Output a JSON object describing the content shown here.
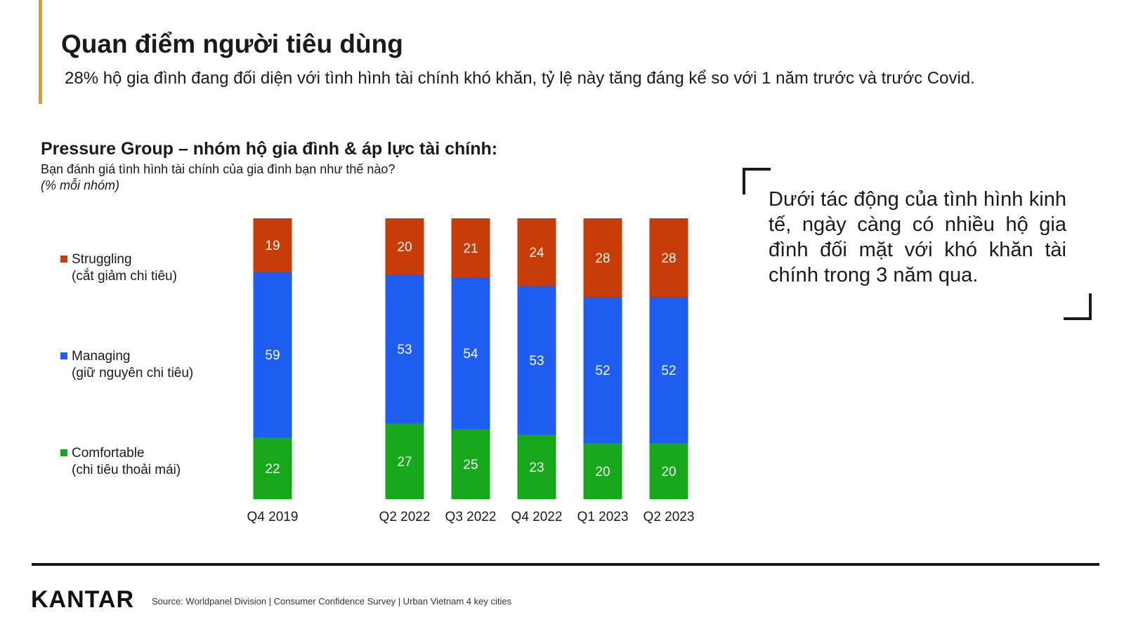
{
  "header": {
    "title": "Quan điểm người tiêu dùng",
    "subtitle": "28% hộ gia đình đang đối diện với tình hình tài chính khó khăn, tỷ lệ này tăng đáng kể so với 1 năm trước và trước Covid."
  },
  "chart_heading": {
    "title": "Pressure Group – nhóm hộ gia đình & áp lực tài chính:",
    "question": "Bạn đánh giá tình hình tài chính của gia đình bạn như thế nào?",
    "unit": "(% mỗi nhóm)"
  },
  "legend": [
    {
      "label": "Struggling",
      "sublabel": "(cắt giảm chi tiêu)",
      "color": "#c83c0a"
    },
    {
      "label": "Managing",
      "sublabel": "(giữ nguyên chi tiêu)",
      "color": "#1f5cf0"
    },
    {
      "label": "Comfortable",
      "sublabel": "(chi tiêu thoải mái)",
      "color": "#16a81a"
    }
  ],
  "chart_data": {
    "type": "bar",
    "stacked": true,
    "percent_stacked": true,
    "categories": [
      "Q4 2019",
      "Q2 2022",
      "Q3 2022",
      "Q4 2022",
      "Q1 2023",
      "Q2 2023"
    ],
    "series": [
      {
        "name": "Comfortable",
        "color": "#16a81a",
        "values": [
          22,
          27,
          25,
          23,
          20,
          20
        ]
      },
      {
        "name": "Managing",
        "color": "#1f5cf0",
        "values": [
          59,
          53,
          54,
          53,
          52,
          52
        ]
      },
      {
        "name": "Struggling",
        "color": "#c83c0a",
        "values": [
          19,
          20,
          21,
          24,
          28,
          28
        ]
      }
    ],
    "ylim": [
      0,
      100
    ],
    "data_labels": true,
    "grid": false,
    "legend_position": "left"
  },
  "callout": {
    "text": "Dưới tác động của tình hình kinh tế, ngày càng có nhiều hộ gia đình đối mặt với khó khăn tài chính trong 3 năm qua."
  },
  "footer": {
    "logo": "KANTAR",
    "source": "Source: Worldpanel Division | Consumer Confidence Survey | Urban Vietnam 4 key cities"
  }
}
